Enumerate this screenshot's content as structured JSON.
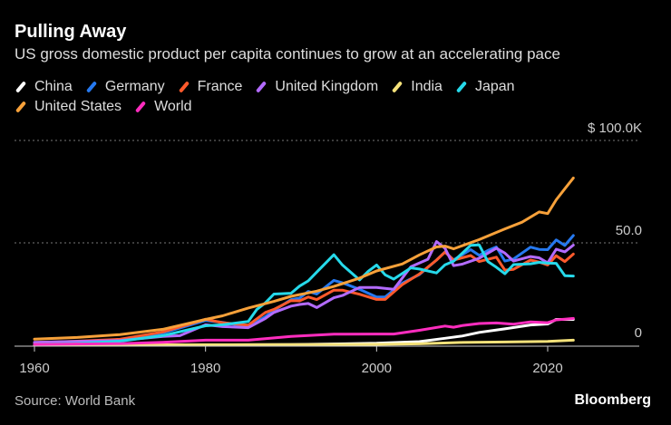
{
  "title": "Pulling Away",
  "subtitle": "US gross domestic product per capita continues to grow at an accelerating pace",
  "source": "Source: World Bank",
  "logo": "Bloomberg",
  "chart_data": {
    "type": "line",
    "title": "Pulling Away",
    "xlabel": "",
    "ylabel": "",
    "xlim": [
      1958,
      2031
    ],
    "ylim": [
      0,
      100
    ],
    "x_ticks": [
      "1960",
      "1980",
      "2000",
      "2020"
    ],
    "y_ticks": [
      {
        "value": 0,
        "label": "0"
      },
      {
        "value": 50,
        "label": "50.0"
      },
      {
        "value": 100,
        "label": "$ 100.0K"
      }
    ],
    "grid": "horizontal dotted",
    "legend_position": "top",
    "series": [
      {
        "name": "China",
        "color": "#ffffff",
        "x": [
          1960,
          1970,
          1980,
          1990,
          2000,
          2005,
          2008,
          2010,
          2012,
          2015,
          2018,
          2020,
          2021,
          2023
        ],
        "y": [
          0.09,
          0.11,
          0.2,
          0.3,
          0.96,
          1.75,
          3.4,
          4.5,
          6.3,
          8.0,
          9.9,
          10.4,
          12.6,
          12.6
        ]
      },
      {
        "name": "Germany",
        "color": "#2679f0",
        "x": [
          1960,
          1965,
          1970,
          1975,
          1980,
          1982,
          1985,
          1987,
          1988,
          1990,
          1991,
          1992,
          1993,
          1995,
          1996,
          1998,
          2000,
          2001,
          2003,
          2005,
          2007,
          2008,
          2009,
          2011,
          2012,
          2013,
          2014,
          2015,
          2016,
          2018,
          2019,
          2020,
          2021,
          2022,
          2023
        ],
        "y": [
          0.5,
          1.2,
          2.7,
          6.0,
          12.1,
          11.2,
          9.0,
          14.0,
          17.0,
          22.3,
          23.0,
          26.3,
          25.0,
          31.7,
          30.5,
          27.3,
          23.6,
          23.6,
          30.3,
          34.5,
          41.6,
          45.6,
          41.7,
          46.7,
          43.9,
          46.3,
          48.0,
          41.1,
          42.1,
          47.9,
          46.8,
          46.7,
          51.4,
          48.7,
          53.6
        ]
      },
      {
        "name": "France",
        "color": "#ff5a2c",
        "x": [
          1960,
          1965,
          1970,
          1975,
          1980,
          1982,
          1985,
          1987,
          1988,
          1990,
          1991,
          1992,
          1993,
          1995,
          1996,
          1998,
          2000,
          2001,
          2003,
          2005,
          2007,
          2008,
          2009,
          2011,
          2012,
          2014,
          2015,
          2016,
          2018,
          2019,
          2020,
          2021,
          2022,
          2023
        ],
        "y": [
          1.3,
          2.0,
          2.9,
          6.5,
          12.7,
          11.0,
          9.8,
          16.0,
          17.5,
          21.8,
          21.7,
          23.6,
          22.3,
          26.9,
          26.9,
          24.9,
          22.4,
          22.4,
          29.6,
          34.8,
          41.6,
          45.5,
          41.6,
          43.8,
          40.9,
          43.0,
          36.7,
          37.1,
          41.6,
          40.6,
          39.2,
          43.7,
          40.9,
          44.5
        ]
      },
      {
        "name": "United Kingdom",
        "color": "#b36bff",
        "x": [
          1960,
          1965,
          1970,
          1975,
          1977,
          1980,
          1982,
          1985,
          1987,
          1988,
          1990,
          1991,
          1992,
          1993,
          1995,
          1996,
          1998,
          2000,
          2002,
          2004,
          2006,
          2007,
          2008,
          2009,
          2010,
          2012,
          2014,
          2015,
          2016,
          2018,
          2019,
          2020,
          2021,
          2022,
          2023
        ],
        "y": [
          1.4,
          1.9,
          2.3,
          4.3,
          4.7,
          10.0,
          9.1,
          8.6,
          13.1,
          16.0,
          19.1,
          19.9,
          20.4,
          18.4,
          23.2,
          24.3,
          28.2,
          28.2,
          27.3,
          38.3,
          42.0,
          50.6,
          47.3,
          38.9,
          39.6,
          42.5,
          47.4,
          45.0,
          41.1,
          43.3,
          42.7,
          40.2,
          46.9,
          45.6,
          48.9
        ]
      },
      {
        "name": "India",
        "color": "#f5e27a",
        "x": [
          1960,
          1980,
          1990,
          2000,
          2005,
          2010,
          2015,
          2020,
          2023
        ],
        "y": [
          0.08,
          0.27,
          0.37,
          0.44,
          0.71,
          1.36,
          1.59,
          1.9,
          2.5
        ]
      },
      {
        "name": "Japan",
        "color": "#26d9ea",
        "x": [
          1960,
          1965,
          1970,
          1975,
          1980,
          1982,
          1985,
          1986,
          1987,
          1988,
          1990,
          1991,
          1992,
          1993,
          1995,
          1996,
          1998,
          1999,
          2000,
          2001,
          2002,
          2004,
          2005,
          2007,
          2008,
          2009,
          2010,
          2011,
          2012,
          2013,
          2014,
          2015,
          2016,
          2018,
          2019,
          2020,
          2021,
          2022,
          2023
        ],
        "y": [
          0.5,
          0.9,
          2.0,
          4.7,
          9.5,
          10.0,
          11.6,
          17.5,
          20.7,
          25.0,
          25.4,
          28.9,
          31.4,
          35.7,
          44.2,
          39.2,
          31.9,
          36.0,
          39.2,
          34.4,
          32.3,
          37.8,
          37.2,
          35.3,
          39.3,
          41.0,
          44.9,
          48.8,
          49.0,
          40.9,
          38.1,
          34.9,
          39.4,
          39.8,
          40.5,
          40.1,
          40.0,
          34.0,
          33.8
        ]
      },
      {
        "name": "United States",
        "color": "#f7a13a",
        "x": [
          1960,
          1965,
          1970,
          1975,
          1980,
          1982,
          1985,
          1988,
          1990,
          1993,
          1995,
          1998,
          2000,
          2003,
          2005,
          2007,
          2008,
          2009,
          2010,
          2012,
          2015,
          2017,
          2019,
          2020,
          2021,
          2022,
          2023
        ],
        "y": [
          3.0,
          3.8,
          5.2,
          7.8,
          12.6,
          14.4,
          18.2,
          21.4,
          23.9,
          26.4,
          28.7,
          32.8,
          36.3,
          39.7,
          44.1,
          48.0,
          48.4,
          47.1,
          48.6,
          51.6,
          56.8,
          60.1,
          65.1,
          64.3,
          71.0,
          76.4,
          81.7
        ]
      },
      {
        "name": "World",
        "color": "#ff2dbf",
        "x": [
          1960,
          1970,
          1975,
          1980,
          1985,
          1990,
          1995,
          2000,
          2002,
          2005,
          2008,
          2009,
          2010,
          2012,
          2014,
          2016,
          2018,
          2020,
          2021,
          2022,
          2023
        ],
        "y": [
          0.45,
          0.8,
          1.4,
          2.5,
          2.5,
          4.3,
          5.4,
          5.5,
          5.5,
          7.3,
          9.4,
          8.8,
          9.6,
          10.6,
          10.9,
          10.3,
          11.4,
          11.0,
          12.4,
          12.7,
          13.1
        ]
      }
    ]
  }
}
